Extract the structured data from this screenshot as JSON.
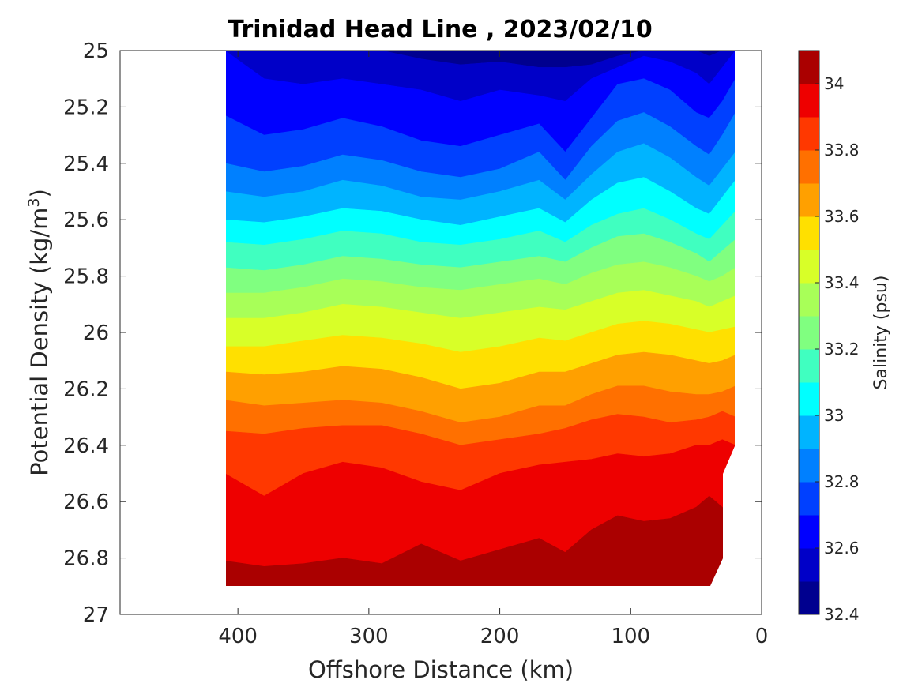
{
  "chart_data": {
    "type": "heatmap",
    "title": "Trinidad Head Line , 2023/02/10",
    "xlabel": "Offshore Distance (km)",
    "ylabel_main": "Potential Density (kg/m",
    "ylabel_sup": "3",
    "ylabel_close": ")",
    "xlim": [
      490,
      0
    ],
    "ylim": [
      25,
      27
    ],
    "x_ticks": [
      400,
      300,
      200,
      100,
      0
    ],
    "x_tick_labels": [
      "400",
      "300",
      "200",
      "100",
      "0"
    ],
    "y_ticks": [
      25,
      25.2,
      25.4,
      25.6,
      25.8,
      26,
      26.2,
      26.4,
      26.6,
      26.8,
      27
    ],
    "y_tick_labels": [
      "25",
      "25.2",
      "25.4",
      "25.6",
      "25.8",
      "26",
      "26.2",
      "26.4",
      "26.6",
      "26.8",
      "27"
    ],
    "colorbar": {
      "label": "Salinity (psu)",
      "range": [
        32.4,
        34.1
      ],
      "tick_values": [
        32.4,
        32.6,
        32.8,
        33,
        33.2,
        33.4,
        33.6,
        33.8,
        34
      ],
      "tick_labels": [
        "32.4",
        "32.6",
        "32.8",
        "33",
        "33.2",
        "33.4",
        "33.6",
        "33.8",
        "34"
      ],
      "levels": [
        32.4,
        32.5,
        32.6,
        32.7,
        32.8,
        32.9,
        33.0,
        33.1,
        33.2,
        33.3,
        33.4,
        33.5,
        33.6,
        33.7,
        33.8,
        33.9,
        34.0,
        34.1
      ],
      "colors": [
        "#00008F",
        "#0000C8",
        "#0000FF",
        "#0040FF",
        "#0080FF",
        "#00B4FF",
        "#00FFFF",
        "#40FFC0",
        "#80FF80",
        "#A8FF58",
        "#D8FF28",
        "#FFE000",
        "#FFA000",
        "#FF7000",
        "#FF3800",
        "#EE0000",
        "#AA0000"
      ]
    },
    "section": {
      "x_km": [
        410,
        380,
        350,
        320,
        290,
        260,
        230,
        200,
        170,
        150,
        130,
        110,
        90,
        70,
        50,
        40,
        30,
        20
      ],
      "sigma_max_km": [
        410,
        40
      ],
      "sigma_range": [
        25.0,
        26.9
      ],
      "contours": [
        {
          "level": 32.5,
          "sigma": [
            25.0,
            25.0,
            25.0,
            25.0,
            25.0,
            25.03,
            25.05,
            25.04,
            25.06,
            25.06,
            25.05,
            25.02,
            25.0,
            25.0,
            25.0,
            25.02,
            25.0,
            25.0
          ]
        },
        {
          "level": 32.6,
          "sigma": [
            25.0,
            25.1,
            25.12,
            25.1,
            25.12,
            25.14,
            25.18,
            25.14,
            25.16,
            25.18,
            25.1,
            25.06,
            25.02,
            25.04,
            25.08,
            25.12,
            25.06,
            25.0
          ]
        },
        {
          "level": 32.7,
          "sigma": [
            25.23,
            25.3,
            25.28,
            25.24,
            25.27,
            25.32,
            25.34,
            25.3,
            25.26,
            25.36,
            25.24,
            25.12,
            25.1,
            25.14,
            25.22,
            25.24,
            25.18,
            25.1
          ]
        },
        {
          "level": 32.8,
          "sigma": [
            25.4,
            25.43,
            25.41,
            25.37,
            25.39,
            25.43,
            25.45,
            25.42,
            25.36,
            25.46,
            25.34,
            25.25,
            25.22,
            25.27,
            25.34,
            25.37,
            25.3,
            25.22
          ]
        },
        {
          "level": 32.9,
          "sigma": [
            25.5,
            25.52,
            25.5,
            25.46,
            25.48,
            25.52,
            25.53,
            25.5,
            25.46,
            25.53,
            25.44,
            25.36,
            25.33,
            25.38,
            25.45,
            25.48,
            25.42,
            25.36
          ]
        },
        {
          "level": 33.0,
          "sigma": [
            25.6,
            25.61,
            25.59,
            25.56,
            25.57,
            25.6,
            25.62,
            25.59,
            25.56,
            25.61,
            25.53,
            25.47,
            25.45,
            25.5,
            25.56,
            25.58,
            25.52,
            25.46
          ]
        },
        {
          "level": 33.1,
          "sigma": [
            25.68,
            25.69,
            25.67,
            25.64,
            25.65,
            25.68,
            25.69,
            25.67,
            25.64,
            25.68,
            25.62,
            25.58,
            25.56,
            25.6,
            25.65,
            25.67,
            25.62,
            25.57
          ]
        },
        {
          "level": 33.2,
          "sigma": [
            25.77,
            25.78,
            25.76,
            25.73,
            25.74,
            25.76,
            25.77,
            25.75,
            25.73,
            25.75,
            25.7,
            25.66,
            25.65,
            25.68,
            25.72,
            25.75,
            25.71,
            25.67
          ]
        },
        {
          "level": 33.3,
          "sigma": [
            25.86,
            25.86,
            25.84,
            25.81,
            25.82,
            25.84,
            25.85,
            25.83,
            25.81,
            25.83,
            25.79,
            25.76,
            25.75,
            25.77,
            25.8,
            25.82,
            25.8,
            25.77
          ]
        },
        {
          "level": 33.4,
          "sigma": [
            25.95,
            25.95,
            25.93,
            25.9,
            25.91,
            25.93,
            25.95,
            25.93,
            25.91,
            25.92,
            25.89,
            25.86,
            25.85,
            25.87,
            25.89,
            25.91,
            25.89,
            25.87
          ]
        },
        {
          "level": 33.5,
          "sigma": [
            26.05,
            26.05,
            26.03,
            26.01,
            26.02,
            26.04,
            26.07,
            26.05,
            26.02,
            26.03,
            26.0,
            25.97,
            25.96,
            25.97,
            25.99,
            26.0,
            25.99,
            25.98
          ]
        },
        {
          "level": 33.6,
          "sigma": [
            26.14,
            26.15,
            26.14,
            26.12,
            26.13,
            26.16,
            26.2,
            26.18,
            26.14,
            26.14,
            26.11,
            26.08,
            26.07,
            26.08,
            26.1,
            26.11,
            26.1,
            26.08
          ]
        },
        {
          "level": 33.7,
          "sigma": [
            26.24,
            26.26,
            26.25,
            26.24,
            26.25,
            26.28,
            26.32,
            26.3,
            26.26,
            26.26,
            26.22,
            26.19,
            26.19,
            26.21,
            26.22,
            26.22,
            26.21,
            26.19
          ]
        },
        {
          "level": 33.8,
          "sigma": [
            26.35,
            26.36,
            26.34,
            26.33,
            26.33,
            26.36,
            26.4,
            26.38,
            26.36,
            26.34,
            26.31,
            26.29,
            26.3,
            26.32,
            26.31,
            26.3,
            26.28,
            26.3
          ]
        },
        {
          "level": 33.9,
          "sigma": [
            26.5,
            26.58,
            26.5,
            26.46,
            26.48,
            26.53,
            26.56,
            26.5,
            26.47,
            26.46,
            26.45,
            26.43,
            26.44,
            26.43,
            26.4,
            26.4,
            26.38,
            26.4
          ]
        },
        {
          "level": 34.0,
          "sigma": [
            26.81,
            26.83,
            26.82,
            26.8,
            26.82,
            26.75,
            26.81,
            26.77,
            26.73,
            26.78,
            26.7,
            26.65,
            26.67,
            26.66,
            26.62,
            26.58,
            26.62,
            26.68
          ]
        }
      ]
    }
  }
}
